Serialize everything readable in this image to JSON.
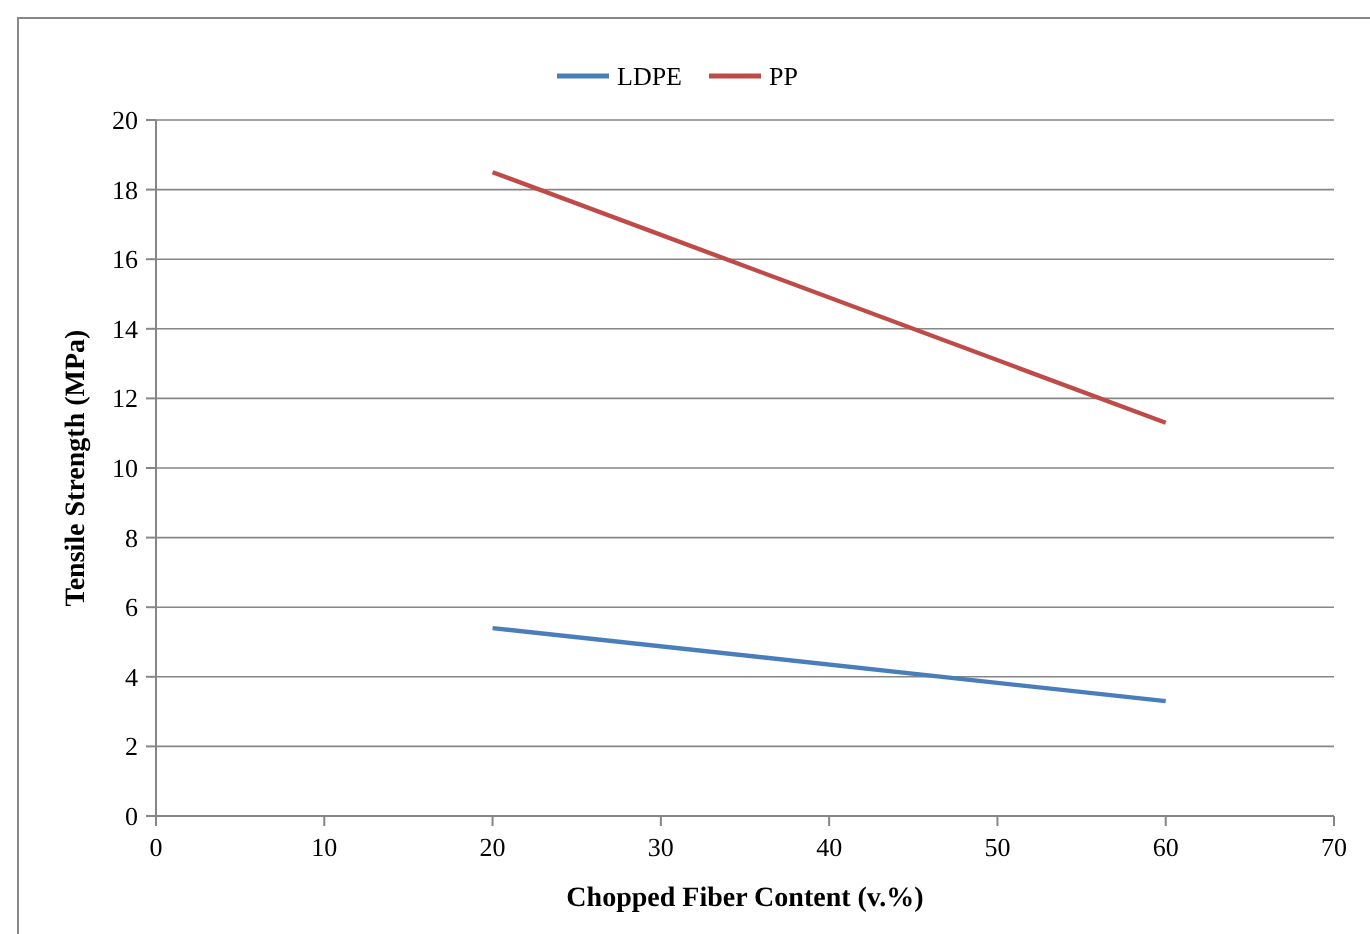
{
  "chart_data": {
    "type": "line",
    "xlabel": "Chopped Fiber Content (v.%)",
    "ylabel": "Tensile Strength (MPa)",
    "x": [
      20,
      60
    ],
    "series": [
      {
        "name": "LDPE",
        "color": "#4a7ebb",
        "values": [
          5.4,
          3.3
        ]
      },
      {
        "name": "PP",
        "color": "#be4b48",
        "values": [
          18.5,
          11.3
        ]
      }
    ],
    "xlim": [
      0,
      70
    ],
    "xticks": [
      0,
      10,
      20,
      30,
      40,
      50,
      60,
      70
    ],
    "ylim": [
      0,
      20
    ],
    "yticks": [
      0,
      2,
      4,
      6,
      8,
      10,
      12,
      14,
      16,
      18,
      20
    ],
    "grid": "y",
    "legend": "top",
    "marker": "none",
    "line_style": "solid"
  }
}
